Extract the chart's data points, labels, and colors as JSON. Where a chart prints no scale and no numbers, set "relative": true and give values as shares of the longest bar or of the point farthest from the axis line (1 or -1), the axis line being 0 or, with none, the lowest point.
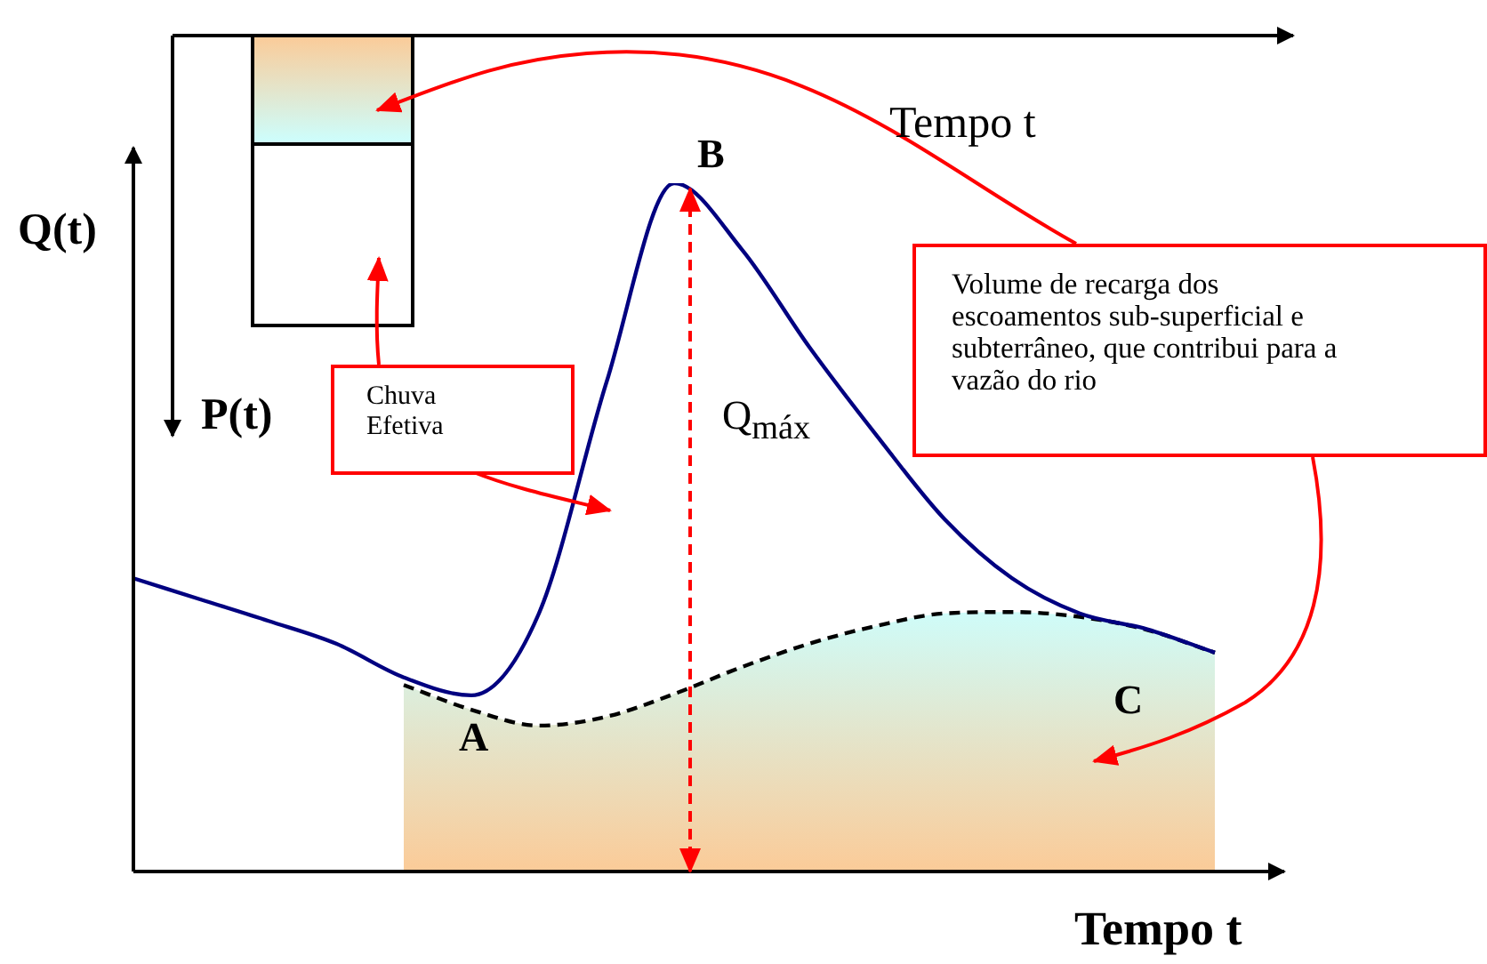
{
  "chart_data": {
    "type": "line",
    "relative": true,
    "xlabel": "Tempo t",
    "ylabel": "Q(t)",
    "legend": false,
    "categories": [
      null,
      null,
      null,
      null,
      null,
      null,
      null,
      null,
      null,
      null,
      null,
      null,
      null,
      null,
      null,
      null,
      null
    ],
    "series": [
      {
        "color": "#000080",
        "line_style": "solid",
        "values": [
          0.426,
          0.395,
          0.364,
          0.331,
          0.282,
          0.256,
          0.375,
          0.711,
          1,
          0.904,
          0.762,
          0.633,
          0.512,
          0.426,
          0.375,
          0.352,
          0.318
        ]
      },
      {
        "type": "area",
        "color": "#000000",
        "line_style": "dashed",
        "values": [
          null,
          null,
          null,
          null,
          0.271,
          0.235,
          0.212,
          0.225,
          0.258,
          0.297,
          0.331,
          0.357,
          0.375,
          0.377,
          0.37,
          0.351,
          0.318
        ]
      }
    ],
    "annotations": [
      "Tempo t",
      "P(t)",
      "B",
      "A",
      "C",
      "Q$_{máx}$",
      "Chuva Efetiva",
      "Volume de recarga dos escoamentos sub-superficial e subterrâneo, que contribui para a vazão do rio"
    ]
  }
}
